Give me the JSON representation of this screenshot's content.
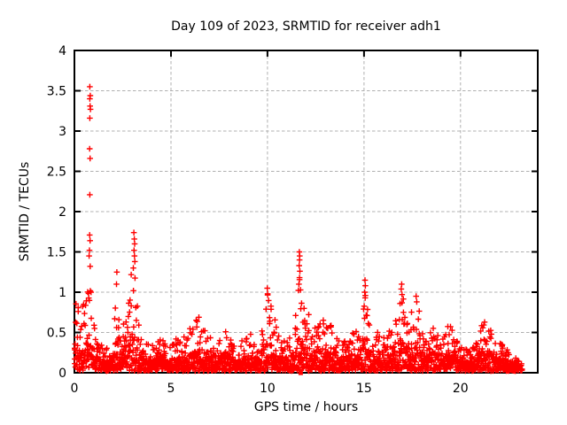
{
  "page": {
    "background": "#ffffff"
  },
  "chart_data": {
    "type": "scatter",
    "title": "Day 109 of 2023, SRMTID for receiver adh1",
    "xlabel": "GPS time / hours",
    "ylabel": "SRMTID / TECUs",
    "xlim": [
      0,
      24
    ],
    "ylim": [
      0,
      4
    ],
    "xticks": [
      [
        0,
        "0"
      ],
      [
        5,
        "5"
      ],
      [
        10,
        "10"
      ],
      [
        15,
        "15"
      ],
      [
        20,
        "20"
      ]
    ],
    "yticks": [
      [
        0,
        "0"
      ],
      [
        0.5,
        "0.5"
      ],
      [
        1,
        "1"
      ],
      [
        1.5,
        "1.5"
      ],
      [
        2,
        "2"
      ],
      [
        2.5,
        "2.5"
      ],
      [
        3,
        "3"
      ],
      [
        3.5,
        "3.5"
      ],
      [
        4,
        "4"
      ]
    ],
    "grid": {
      "show": true,
      "color": "#b0b0b0",
      "dash": [
        3.5,
        2.5
      ]
    },
    "border_color": "#000000",
    "text_color": "#000000",
    "legend": "none",
    "series": [
      {
        "name": "srmtid-scatter",
        "marker": "plus",
        "color": "#ff0000",
        "x_start": 0.0,
        "x_end": 23.2,
        "sample_step_hours": 0.02,
        "baseline": 0.03,
        "envelope": [
          [
            0,
            0.85
          ],
          [
            0.15,
            0.9
          ],
          [
            0.3,
            0.62
          ],
          [
            0.45,
            0.9
          ],
          [
            0.6,
            1.1
          ],
          [
            0.78,
            1.4
          ],
          [
            0.9,
            1.1
          ],
          [
            1.0,
            0.8
          ],
          [
            1.15,
            0.5
          ],
          [
            1.35,
            0.38
          ],
          [
            1.6,
            0.3
          ],
          [
            1.85,
            0.32
          ],
          [
            2.05,
            0.6
          ],
          [
            2.2,
            1.2
          ],
          [
            2.35,
            0.65
          ],
          [
            2.5,
            0.6
          ],
          [
            2.65,
            0.9
          ],
          [
            2.8,
            1.1
          ],
          [
            2.95,
            1.3
          ],
          [
            3.08,
            1.45
          ],
          [
            3.2,
            1.15
          ],
          [
            3.35,
            0.85
          ],
          [
            3.5,
            0.6
          ],
          [
            3.7,
            0.4
          ],
          [
            3.9,
            0.32
          ],
          [
            4.1,
            0.36
          ],
          [
            4.35,
            0.46
          ],
          [
            4.6,
            0.4
          ],
          [
            4.85,
            0.32
          ],
          [
            5.1,
            0.36
          ],
          [
            5.35,
            0.5
          ],
          [
            5.6,
            0.46
          ],
          [
            5.9,
            0.62
          ],
          [
            6.1,
            0.56
          ],
          [
            6.45,
            0.78
          ],
          [
            6.65,
            0.66
          ],
          [
            6.9,
            0.6
          ],
          [
            7.2,
            0.42
          ],
          [
            7.45,
            0.46
          ],
          [
            7.7,
            0.56
          ],
          [
            7.95,
            0.5
          ],
          [
            8.2,
            0.36
          ],
          [
            8.5,
            0.32
          ],
          [
            8.8,
            0.5
          ],
          [
            9.05,
            0.6
          ],
          [
            9.3,
            0.46
          ],
          [
            9.6,
            0.42
          ],
          [
            9.85,
            0.7
          ],
          [
            10.0,
            1.0
          ],
          [
            10.15,
            0.85
          ],
          [
            10.35,
            0.75
          ],
          [
            10.6,
            0.46
          ],
          [
            10.9,
            0.4
          ],
          [
            11.2,
            0.46
          ],
          [
            11.45,
            0.7
          ],
          [
            11.62,
            1.25
          ],
          [
            11.72,
            1.45
          ],
          [
            11.85,
            0.85
          ],
          [
            12.1,
            0.8
          ],
          [
            12.35,
            0.62
          ],
          [
            12.6,
            0.7
          ],
          [
            12.85,
            0.72
          ],
          [
            13.1,
            0.66
          ],
          [
            13.35,
            0.6
          ],
          [
            13.6,
            0.46
          ],
          [
            13.85,
            0.4
          ],
          [
            14.1,
            0.46
          ],
          [
            14.4,
            0.56
          ],
          [
            14.65,
            0.5
          ],
          [
            14.9,
            0.75
          ],
          [
            15.05,
            1.1
          ],
          [
            15.2,
            0.8
          ],
          [
            15.45,
            0.56
          ],
          [
            15.7,
            0.5
          ],
          [
            15.95,
            0.56
          ],
          [
            16.2,
            0.5
          ],
          [
            16.5,
            0.56
          ],
          [
            16.7,
            0.75
          ],
          [
            16.9,
            1.05
          ],
          [
            17.1,
            0.85
          ],
          [
            17.3,
            0.72
          ],
          [
            17.55,
            0.78
          ],
          [
            17.8,
            0.9
          ],
          [
            18.0,
            0.65
          ],
          [
            18.2,
            0.5
          ],
          [
            18.45,
            0.56
          ],
          [
            18.65,
            0.62
          ],
          [
            18.9,
            0.42
          ],
          [
            19.15,
            0.46
          ],
          [
            19.45,
            0.65
          ],
          [
            19.65,
            0.5
          ],
          [
            19.9,
            0.36
          ],
          [
            20.2,
            0.3
          ],
          [
            20.5,
            0.3
          ],
          [
            20.8,
            0.36
          ],
          [
            21.1,
            0.6
          ],
          [
            21.35,
            0.7
          ],
          [
            21.6,
            0.52
          ],
          [
            21.9,
            0.46
          ],
          [
            22.2,
            0.36
          ],
          [
            22.5,
            0.28
          ],
          [
            22.8,
            0.22
          ],
          [
            23.0,
            0.16
          ],
          [
            23.2,
            0.1
          ]
        ],
        "peak_points": [
          [
            0.8,
            3.55
          ],
          [
            0.82,
            3.44
          ],
          [
            0.8,
            3.4
          ],
          [
            0.81,
            3.31
          ],
          [
            0.83,
            3.27
          ],
          [
            0.8,
            3.16
          ],
          [
            0.79,
            2.78
          ],
          [
            0.81,
            2.66
          ],
          [
            0.8,
            2.21
          ],
          [
            0.79,
            1.71
          ],
          [
            0.81,
            1.64
          ],
          [
            0.78,
            1.52
          ],
          [
            0.76,
            1.45
          ],
          [
            3.08,
            1.74
          ],
          [
            3.1,
            1.66
          ],
          [
            3.12,
            1.6
          ],
          [
            3.09,
            1.52
          ],
          [
            3.11,
            1.45
          ],
          [
            3.13,
            1.38
          ],
          [
            3.05,
            1.3
          ],
          [
            2.2,
            1.25
          ],
          [
            2.18,
            1.1
          ],
          [
            11.65,
            1.5
          ],
          [
            11.67,
            1.45
          ],
          [
            11.66,
            1.4
          ],
          [
            11.64,
            1.33
          ],
          [
            11.68,
            1.26
          ],
          [
            11.66,
            1.18
          ],
          [
            11.63,
            1.1
          ],
          [
            15.05,
            1.15
          ],
          [
            15.07,
            1.08
          ],
          [
            15.04,
            1.0
          ],
          [
            15.06,
            0.93
          ],
          [
            16.95,
            1.1
          ],
          [
            16.93,
            1.04
          ],
          [
            16.97,
            0.97
          ],
          [
            9.99,
            1.05
          ],
          [
            10.01,
            0.98
          ],
          [
            17.7,
            0.95
          ],
          [
            17.73,
            0.88
          ]
        ]
      },
      {
        "name": "flag-marker",
        "marker": "filled-square",
        "color": "#ff0000",
        "points": [
          [
            11.72,
            0.01
          ]
        ]
      }
    ]
  }
}
